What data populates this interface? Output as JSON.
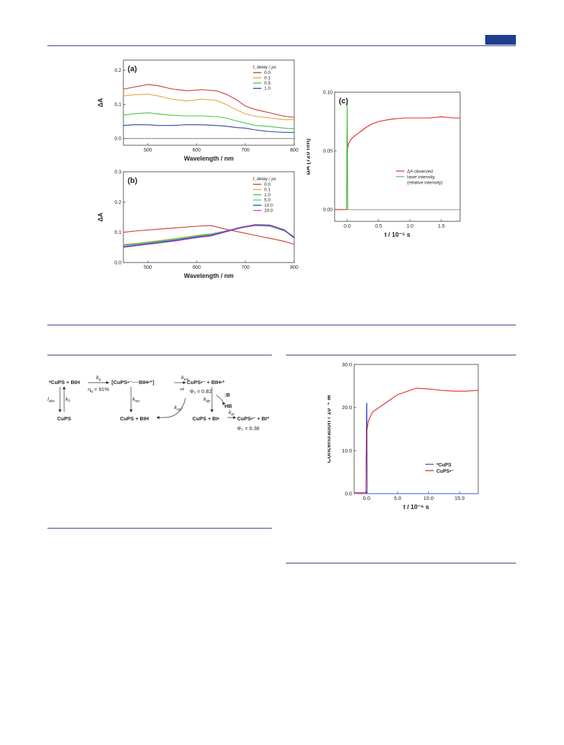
{
  "header": {
    "accent_color": "#1f3f8f"
  },
  "panel_a": {
    "chart_data": {
      "type": "line",
      "label": "(a)",
      "xlabel": "Wavelength / nm",
      "ylabel": "ΔA",
      "xlim": [
        450,
        800
      ],
      "ylim": [
        -0.02,
        0.23
      ],
      "xticks": [
        500,
        600,
        700,
        800
      ],
      "yticks": [
        0.0,
        0.1,
        0.2
      ],
      "ytick_labels": [
        "0.0",
        "0.1",
        "0.2"
      ],
      "legend_title": "t_delay / μs",
      "legend_position": "top-right",
      "series": [
        {
          "name": "0.0",
          "color": "#c0392b",
          "x": [
            450,
            470,
            500,
            520,
            550,
            580,
            610,
            640,
            660,
            680,
            700,
            720,
            750,
            780,
            800
          ],
          "y": [
            0.145,
            0.15,
            0.158,
            0.155,
            0.145,
            0.14,
            0.143,
            0.14,
            0.13,
            0.115,
            0.095,
            0.085,
            0.075,
            0.065,
            0.062
          ]
        },
        {
          "name": "0.1",
          "color": "#e6a23c",
          "x": [
            450,
            470,
            500,
            520,
            550,
            580,
            610,
            640,
            660,
            680,
            700,
            720,
            750,
            780,
            800
          ],
          "y": [
            0.125,
            0.128,
            0.13,
            0.125,
            0.115,
            0.11,
            0.115,
            0.112,
            0.1,
            0.085,
            0.072,
            0.065,
            0.06,
            0.055,
            0.055
          ]
        },
        {
          "name": "0.5",
          "color": "#44c244",
          "x": [
            450,
            470,
            500,
            520,
            550,
            580,
            610,
            640,
            660,
            680,
            700,
            720,
            750,
            780,
            800
          ],
          "y": [
            0.068,
            0.072,
            0.075,
            0.072,
            0.068,
            0.066,
            0.066,
            0.064,
            0.06,
            0.052,
            0.045,
            0.038,
            0.035,
            0.03,
            0.028
          ]
        },
        {
          "name": "1.0",
          "color": "#2b3f9e",
          "x": [
            450,
            470,
            500,
            520,
            550,
            580,
            610,
            640,
            660,
            680,
            700,
            720,
            750,
            780,
            800
          ],
          "y": [
            0.038,
            0.04,
            0.04,
            0.038,
            0.038,
            0.04,
            0.04,
            0.038,
            0.036,
            0.032,
            0.03,
            0.025,
            0.02,
            0.018,
            0.018
          ]
        }
      ]
    }
  },
  "panel_b": {
    "chart_data": {
      "type": "line",
      "label": "(b)",
      "xlabel": "Wavelength / nm",
      "ylabel": "ΔA",
      "xlim": [
        450,
        800
      ],
      "ylim": [
        0,
        0.3
      ],
      "xticks": [
        500,
        600,
        700,
        800
      ],
      "yticks": [
        0.0,
        0.1,
        0.2,
        0.3
      ],
      "ytick_labels": [
        "0.0",
        "0.1",
        "0.2",
        "0.3"
      ],
      "legend_title": "t_delay / μs",
      "legend_position": "top-right",
      "series": [
        {
          "name": "0.0",
          "color": "#c0392b",
          "x": [
            450,
            480,
            520,
            560,
            600,
            630,
            660,
            690,
            720,
            750,
            780,
            800
          ],
          "y": [
            0.1,
            0.105,
            0.11,
            0.115,
            0.12,
            0.122,
            0.11,
            0.1,
            0.09,
            0.08,
            0.07,
            0.06
          ]
        },
        {
          "name": "0.1",
          "color": "#e6a23c",
          "x": [
            450,
            480,
            520,
            560,
            600,
            630,
            660,
            690,
            720,
            750,
            780,
            800
          ],
          "y": [
            0.06,
            0.064,
            0.072,
            0.08,
            0.09,
            0.095,
            0.105,
            0.115,
            0.122,
            0.12,
            0.105,
            0.085
          ]
        },
        {
          "name": "1.0",
          "color": "#44c244",
          "x": [
            450,
            480,
            520,
            560,
            600,
            630,
            660,
            690,
            720,
            750,
            780,
            800
          ],
          "y": [
            0.058,
            0.062,
            0.07,
            0.078,
            0.088,
            0.094,
            0.104,
            0.115,
            0.122,
            0.12,
            0.104,
            0.084
          ]
        },
        {
          "name": "5.0",
          "color": "#3ec8c8",
          "x": [
            450,
            480,
            520,
            560,
            600,
            630,
            660,
            690,
            720,
            750,
            780,
            800
          ],
          "y": [
            0.055,
            0.06,
            0.068,
            0.076,
            0.086,
            0.092,
            0.104,
            0.116,
            0.124,
            0.122,
            0.106,
            0.082
          ]
        },
        {
          "name": "10.0",
          "color": "#2b3f9e",
          "x": [
            450,
            480,
            520,
            560,
            600,
            630,
            660,
            690,
            720,
            750,
            780,
            800
          ],
          "y": [
            0.052,
            0.058,
            0.066,
            0.074,
            0.084,
            0.09,
            0.103,
            0.116,
            0.125,
            0.124,
            0.108,
            0.083
          ]
        },
        {
          "name": "20.0",
          "color": "#c03cc8",
          "x": [
            450,
            480,
            520,
            560,
            600,
            630,
            660,
            690,
            720,
            750,
            780,
            800
          ],
          "y": [
            0.05,
            0.056,
            0.064,
            0.072,
            0.082,
            0.088,
            0.101,
            0.114,
            0.123,
            0.122,
            0.106,
            0.08
          ]
        }
      ]
    }
  },
  "panel_c": {
    "chart_data": {
      "type": "line",
      "label": "(c)",
      "xlabel": "t / 10⁻⁵ s",
      "ylabel": "ΔA (720 nm)",
      "xlim": [
        -0.2,
        1.8
      ],
      "ylim": [
        -0.01,
        0.1
      ],
      "xticks": [
        0.0,
        0.5,
        1.0,
        1.5
      ],
      "xtick_labels": [
        "0.0",
        "0.5",
        "1.0",
        "1.5"
      ],
      "yticks": [
        0.0,
        0.05,
        0.1
      ],
      "ytick_labels": [
        "0.00",
        "0.05",
        "0.10"
      ],
      "legend_position": "right",
      "series": [
        {
          "name": "ΔA observed",
          "color": "#e02020",
          "x": [
            -0.2,
            -0.1,
            -0.01,
            0.0,
            0.02,
            0.05,
            0.1,
            0.2,
            0.3,
            0.4,
            0.5,
            0.7,
            0.9,
            1.1,
            1.3,
            1.5,
            1.7,
            1.8
          ],
          "y": [
            0.0,
            0.0,
            0.0,
            0.05,
            0.056,
            0.059,
            0.062,
            0.066,
            0.07,
            0.073,
            0.075,
            0.077,
            0.078,
            0.078,
            0.078,
            0.079,
            0.078,
            0.078
          ]
        },
        {
          "name": "laser intensity\n(relative intensity)",
          "color": "#44c244",
          "x": [
            -0.01,
            -0.005,
            0.0,
            0.005,
            0.01
          ],
          "y": [
            0.0,
            0.05,
            0.094,
            0.05,
            0.0
          ]
        }
      ],
      "legend_lines": [
        "ΔA observed",
        "laser intensity",
        "(relative intensity)"
      ]
    }
  },
  "scheme": {
    "species_excited": "CuPS + BIH",
    "k_q": "k",
    "eta_q": "η",
    "eta_val": " = 91%",
    "complex": "[CuPS•⁻····BIH•⁺]",
    "k_esc": "k",
    "k_sol": "sol",
    "sep_products": "CuPS•⁻ + BIH•⁺",
    "phi1": "Φ₁ = 0.82",
    "I_abs": "I",
    "k0": "k",
    "ground": "CuPS",
    "k_rec": "k",
    "rec_products": "CuPS + BIH",
    "k_rec2": "k",
    "k_dp": "k",
    "base": ":B",
    "HB": "HB",
    "products2": "CuPS + BI•",
    "k_et": "k",
    "final": "CuPS•⁻ + BI⁺",
    "phi2": "Φ₂ = 0.38"
  },
  "panel_d": {
    "chart_data": {
      "type": "line",
      "xlabel": "t / 10⁻⁶ s",
      "ylabel": "Concentration / 10⁻⁶ M",
      "xlim": [
        -2,
        18
      ],
      "ylim": [
        0,
        30
      ],
      "xticks": [
        0.0,
        5.0,
        10.0,
        15.0
      ],
      "xtick_labels": [
        "0.0",
        "5.0",
        "10.0",
        "15.0"
      ],
      "yticks": [
        0.0,
        10.0,
        20.0,
        30.0
      ],
      "ytick_labels": [
        "0.0",
        "10.0",
        "20.0",
        "30.0"
      ],
      "legend_position": "bottom-right",
      "series": [
        {
          "name": "*CuPS",
          "color": "#3b4fd8",
          "x": [
            -2,
            -0.1,
            0.0,
            0.05,
            0.1,
            0.2,
            18
          ],
          "y": [
            0,
            0,
            21,
            21,
            0,
            0,
            0
          ]
        },
        {
          "name": "CuPS•⁻",
          "color": "#e02020",
          "x": [
            -2,
            -1,
            -0.1,
            0.0,
            0.3,
            1,
            2,
            3,
            4,
            5,
            6,
            8,
            10,
            12,
            14,
            16,
            18
          ],
          "y": [
            0.3,
            0.2,
            0.3,
            14,
            17,
            19,
            20,
            21,
            22,
            23,
            23.5,
            24.5,
            24.3,
            24,
            23.8,
            23.8,
            24
          ]
        }
      ],
      "legend_labels": [
        "*CuPS",
        "CuPS•⁻"
      ]
    }
  }
}
